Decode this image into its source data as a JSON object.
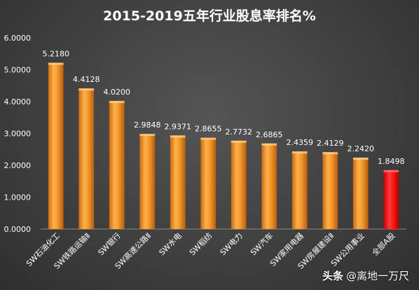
{
  "chart_data": {
    "type": "bar",
    "title": "2015-2019五年行业股息率排名%",
    "categories": [
      "SW石油化工",
      "SW铁路运输Ⅱ",
      "SW银行",
      "SW高速公路Ⅱ",
      "SW水电",
      "SW稻纺",
      "SW电力",
      "SW汽车",
      "SW家用电器",
      "SW房屋建设Ⅱ",
      "SW公用事业",
      "全部A股"
    ],
    "values": [
      5.218,
      4.4128,
      4.02,
      2.9848,
      2.9371,
      2.8655,
      2.7732,
      2.6865,
      2.4359,
      2.4129,
      2.242,
      1.8498
    ],
    "value_labels": [
      "5.2180",
      "4.4128",
      "4.0200",
      "2.9848",
      "2.9371",
      "2.8655",
      "2.7732",
      "2.6865",
      "2.4359",
      "2.4129",
      "2.2420",
      "1.8498"
    ],
    "yticks": [
      "0.0000",
      "1.0000",
      "2.0000",
      "3.0000",
      "4.0000",
      "5.0000",
      "6.0000"
    ],
    "ylim": [
      0,
      6
    ],
    "xlabel": "",
    "ylabel": "",
    "grid": false,
    "legend": "none",
    "bar_color": "#f0962a",
    "highlight_color": "#ff1010",
    "highlight_index": 11
  },
  "watermark": {
    "brand": "头条",
    "handle": "@离地一万尺"
  }
}
